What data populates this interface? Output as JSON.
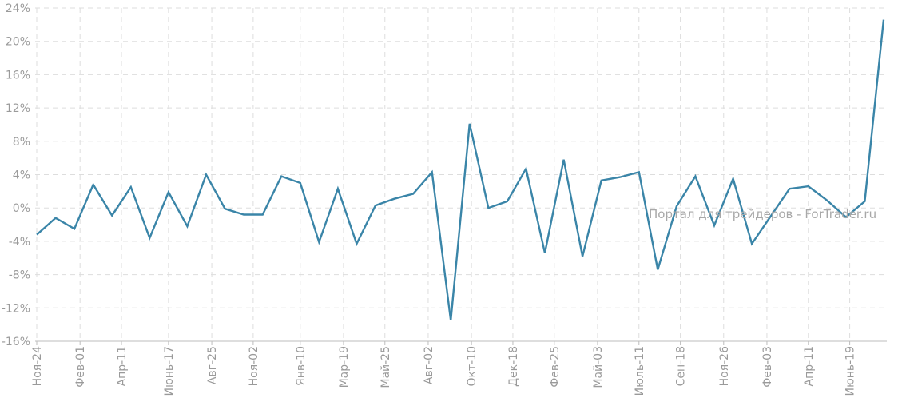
{
  "chart_data": {
    "type": "line",
    "color": "#3a85a8",
    "ylim": [
      -16,
      24
    ],
    "yticks": [
      24,
      20,
      16,
      12,
      8,
      4,
      0,
      -4,
      -8,
      -12,
      -16
    ],
    "y_unit": "%",
    "grid": true,
    "xtick_labels": [
      "Ноя-24",
      "Фев-01",
      "Апр-11",
      "Июнь-17",
      "Авг-25",
      "Ноя-02",
      "Янв-10",
      "Мар-19",
      "Май-25",
      "Авг-02",
      "Окт-10",
      "Дек-18",
      "Фев-25",
      "Май-03",
      "Июль-11",
      "Сен-18",
      "Ноя-26",
      "Фев-03",
      "Апр-11",
      "Июнь-19"
    ],
    "xtick_index": [
      0,
      2.3,
      4.5,
      7,
      9.3,
      11.5,
      14,
      16.3,
      18.5,
      20.8,
      23.1,
      25.3,
      27.5,
      29.8,
      32,
      34.2,
      36.5,
      38.8,
      41,
      43.2
    ],
    "values": [
      -3.2,
      -1.2,
      -2.5,
      2.8,
      -0.9,
      2.5,
      -3.6,
      1.9,
      -2.2,
      4.0,
      -0.1,
      -0.8,
      -0.8,
      3.8,
      3.0,
      -4.1,
      2.3,
      -4.3,
      0.3,
      1.1,
      1.7,
      4.3,
      -13.5,
      10.1,
      0.0,
      0.8,
      4.7,
      -5.4,
      5.8,
      -5.8,
      3.3,
      3.7,
      4.3,
      -7.4,
      0.2,
      3.8,
      -2.1,
      3.5,
      -4.3,
      -1.0,
      2.3,
      2.6,
      0.9,
      -1.1,
      0.8,
      22.6
    ]
  },
  "watermark": "Портал для трейдеров - ForTrader.ru"
}
